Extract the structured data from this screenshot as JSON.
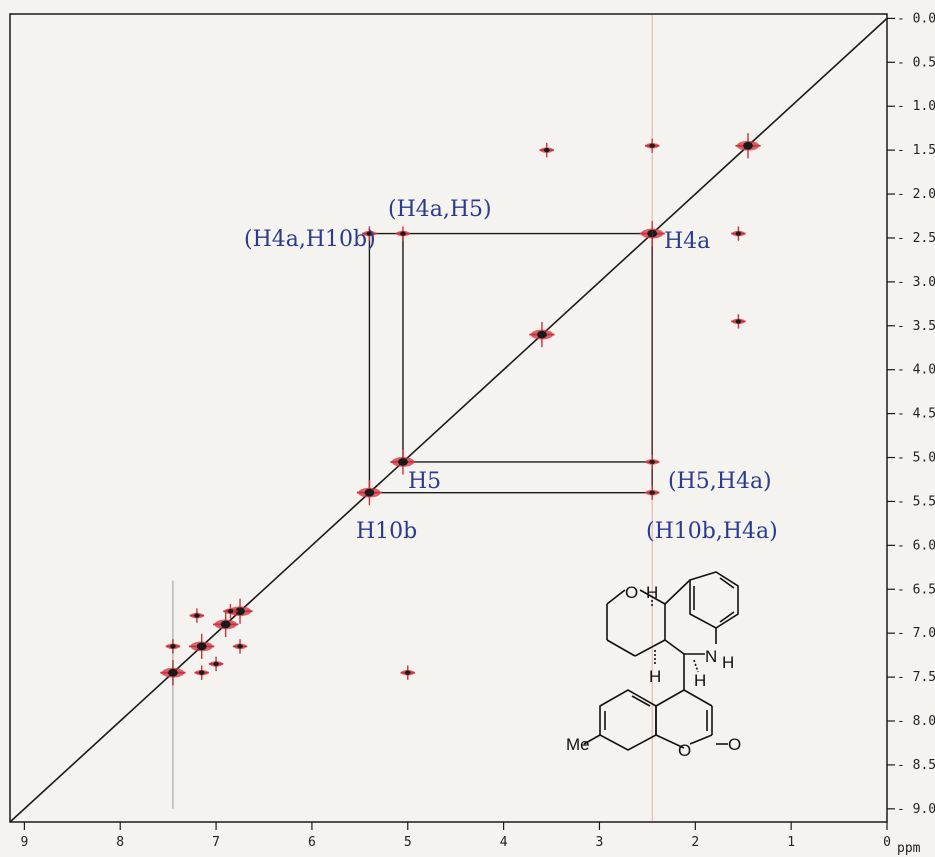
{
  "chart_data": {
    "type": "heatmap",
    "subtype": "2D NMR COSY spectrum",
    "x_axis": {
      "unit_label": "ppm",
      "ticks": [
        9,
        8,
        7,
        6,
        5,
        4,
        3,
        2,
        1,
        0
      ],
      "range": [
        9.15,
        0
      ],
      "reversed": true
    },
    "y_axis": {
      "ticks": [
        "0.0",
        "0.5",
        "1.0",
        "1.5",
        "2.0",
        "2.5",
        "3.0",
        "3.5",
        "4.0",
        "4.5",
        "5.0",
        "5.5",
        "6.0",
        "6.5",
        "7.0",
        "7.5",
        "8.0",
        "8.5",
        "9.0"
      ],
      "range": [
        -0.05,
        9.15
      ],
      "position": "right"
    },
    "diagonal_peaks": [
      {
        "ppm": 1.45
      },
      {
        "ppm": 2.45
      },
      {
        "ppm": 3.6
      },
      {
        "ppm": 5.05
      },
      {
        "ppm": 5.4
      },
      {
        "ppm": 6.75
      },
      {
        "ppm": 6.9
      },
      {
        "ppm": 7.15
      },
      {
        "ppm": 7.45
      }
    ],
    "cross_peaks": [
      {
        "x": 5.4,
        "y": 2.45
      },
      {
        "x": 5.05,
        "y": 2.45
      },
      {
        "x": 2.45,
        "y": 5.05
      },
      {
        "x": 2.45,
        "y": 5.4
      },
      {
        "x": 1.55,
        "y": 2.45
      },
      {
        "x": 1.55,
        "y": 3.45
      },
      {
        "x": 3.55,
        "y": 1.5
      },
      {
        "x": 2.45,
        "y": 1.45
      },
      {
        "x": 7.45,
        "y": 7.15
      },
      {
        "x": 7.15,
        "y": 7.45
      },
      {
        "x": 7.2,
        "y": 6.8
      },
      {
        "x": 6.75,
        "y": 7.15
      },
      {
        "x": 6.85,
        "y": 6.75
      },
      {
        "x": 7.0,
        "y": 7.35
      },
      {
        "x": 5.0,
        "y": 7.45
      }
    ],
    "annotations": {
      "h4a_h10b": "(H4a,H10b)",
      "h4a_h5": "(H4a,H5)",
      "h4a": "H4a",
      "h5": "H5",
      "h10b": "H10b",
      "h5_h4a": "(H5,H4a)",
      "h10b_h4a": "(H10b,H4a)"
    },
    "box_lines_ppm": {
      "h4a": 2.45,
      "h5": 5.05,
      "h10b": 5.4
    }
  },
  "molecule": {
    "atom_labels": [
      "O",
      "H",
      "H",
      "H",
      "N",
      "H",
      "Me",
      "O",
      "O"
    ]
  },
  "colors": {
    "ink": "#1a1a1a",
    "peak_red": "#d0303c",
    "handwriting": "#2a3a8f",
    "background": "#f4f3ef"
  }
}
